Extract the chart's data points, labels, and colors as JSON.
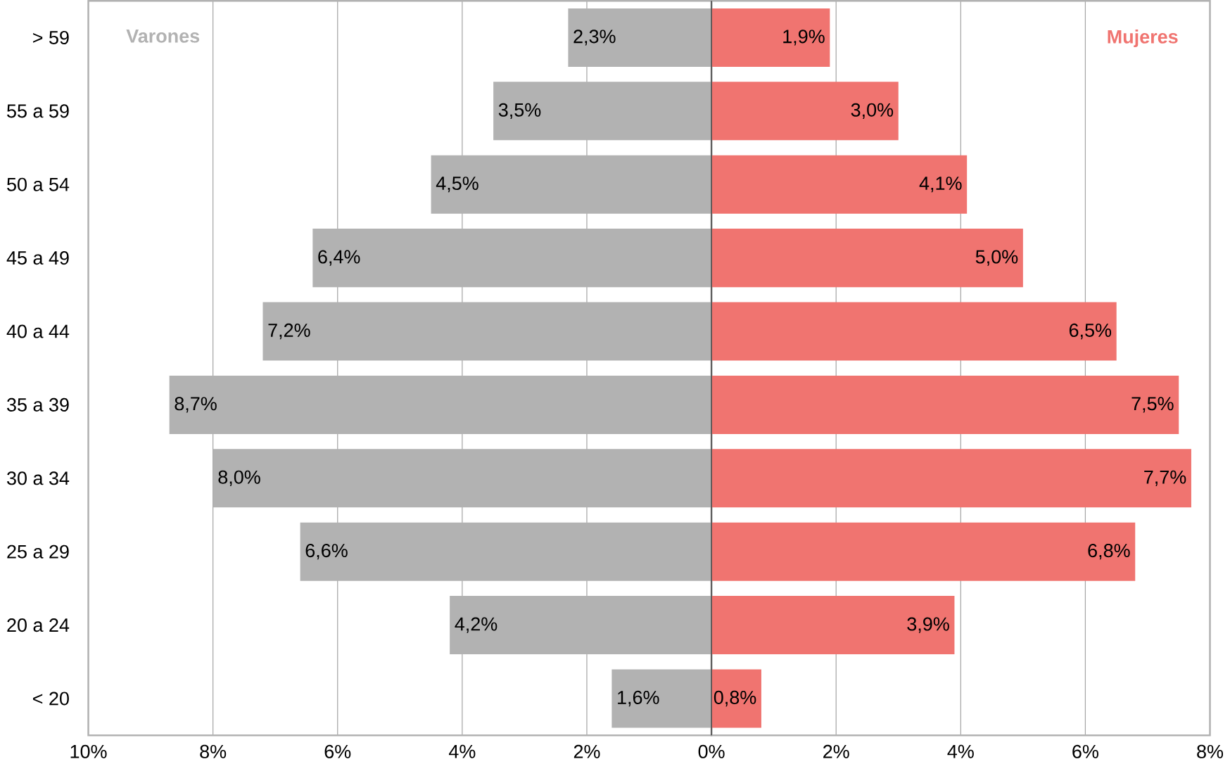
{
  "chart_data": [
    {
      "type": "bar",
      "orientation": "horizontal",
      "grid": "x",
      "categories": [
        "> 59",
        "55 a 59",
        "50 a 54",
        "45 a 49",
        "40 a 44",
        "35 a 39",
        "30 a 34",
        "25 a 29",
        "20 a 24",
        "< 20"
      ],
      "series": [
        {
          "name": "Varones",
          "color": "#b2b2b2",
          "values": [
            2.3,
            3.5,
            4.5,
            6.4,
            7.2,
            8.7,
            8.0,
            6.6,
            4.2,
            1.6
          ],
          "value_labels": [
            "2,3%",
            "3,5%",
            "4,5%",
            "6,4%",
            "7,2%",
            "8,7%",
            "8,0%",
            "6,6%",
            "4,2%",
            "1,6%"
          ]
        }
      ],
      "xlim": [
        10,
        0
      ],
      "xticks": [
        {
          "value": 10,
          "label": "10%"
        },
        {
          "value": 8,
          "label": "8%"
        },
        {
          "value": 6,
          "label": "6%"
        },
        {
          "value": 4,
          "label": "4%"
        },
        {
          "value": 2,
          "label": "2%"
        },
        {
          "value": 0,
          "label": "0%"
        }
      ]
    },
    {
      "type": "bar",
      "orientation": "horizontal",
      "grid": "x",
      "categories": [
        null,
        null,
        null,
        null,
        null,
        null,
        null,
        null,
        null,
        null
      ],
      "series": [
        {
          "name": "Mujeres",
          "color": "#f07470",
          "values": [
            1.9,
            3.0,
            4.1,
            5.0,
            6.5,
            7.5,
            7.7,
            6.8,
            3.9,
            0.8
          ],
          "value_labels": [
            "1,9%",
            "3,0%",
            "4,1%",
            "5,0%",
            "6,5%",
            "7,5%",
            "7,7%",
            "6,8%",
            "3,9%",
            "0,8%"
          ]
        }
      ],
      "xlim": [
        0,
        8
      ],
      "xticks": [
        {
          "value": 0,
          "label": null
        },
        {
          "value": 2,
          "label": "2%"
        },
        {
          "value": 4,
          "label": "4%"
        },
        {
          "value": 6,
          "label": "6%"
        },
        {
          "value": 8,
          "label": "8%"
        }
      ]
    }
  ]
}
